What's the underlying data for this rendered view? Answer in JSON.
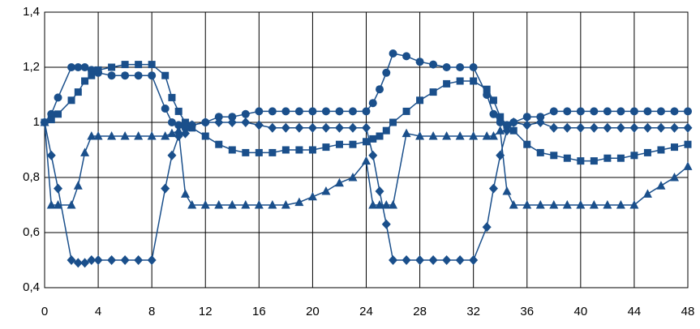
{
  "chart_data": {
    "type": "line",
    "x": [
      0,
      0.5,
      1,
      2,
      2.5,
      3,
      3.5,
      4,
      5,
      6,
      7,
      8,
      9,
      9.5,
      10,
      10.5,
      11,
      12,
      13,
      14,
      15,
      16,
      17,
      18,
      19,
      20,
      21,
      22,
      23,
      24,
      24.5,
      25,
      25.5,
      26,
      27,
      28,
      29,
      30,
      31,
      32,
      33,
      33.5,
      34,
      34.5,
      35,
      36,
      37,
      38,
      39,
      40,
      41,
      42,
      43,
      44,
      45,
      46,
      47,
      48
    ],
    "series": [
      {
        "color": "#1a4f8b",
        "marker": "circle",
        "values": [
          1.0,
          1.03,
          1.09,
          1.2,
          1.2,
          1.2,
          1.19,
          1.18,
          1.17,
          1.17,
          1.17,
          1.17,
          1.05,
          1.0,
          0.99,
          0.98,
          0.99,
          1.0,
          1.02,
          1.02,
          1.03,
          1.04,
          1.04,
          1.04,
          1.04,
          1.04,
          1.04,
          1.04,
          1.04,
          1.04,
          1.07,
          1.12,
          1.18,
          1.25,
          1.24,
          1.22,
          1.21,
          1.2,
          1.2,
          1.2,
          1.1,
          1.03,
          1.0,
          0.99,
          1.0,
          1.02,
          1.02,
          1.04,
          1.04,
          1.04,
          1.04,
          1.04,
          1.04,
          1.04,
          1.04,
          1.04,
          1.04,
          1.04
        ]
      },
      {
        "color": "#1a4f8b",
        "marker": "square",
        "values": [
          1.0,
          1.01,
          1.03,
          1.08,
          1.11,
          1.15,
          1.17,
          1.19,
          1.2,
          1.21,
          1.21,
          1.21,
          1.17,
          1.09,
          1.04,
          1.0,
          0.98,
          0.95,
          0.92,
          0.9,
          0.89,
          0.89,
          0.89,
          0.9,
          0.9,
          0.9,
          0.91,
          0.92,
          0.92,
          0.93,
          0.94,
          0.95,
          0.97,
          1.0,
          1.04,
          1.08,
          1.11,
          1.14,
          1.15,
          1.15,
          1.12,
          1.08,
          1.02,
          0.99,
          0.97,
          0.92,
          0.89,
          0.88,
          0.87,
          0.86,
          0.86,
          0.87,
          0.87,
          0.88,
          0.89,
          0.9,
          0.91,
          0.92
        ]
      },
      {
        "color": "#1a4f8b",
        "marker": "triangle",
        "values": [
          1.0,
          0.7,
          0.7,
          0.7,
          0.77,
          0.89,
          0.95,
          0.95,
          0.95,
          0.95,
          0.95,
          0.95,
          0.95,
          0.96,
          0.97,
          0.74,
          0.7,
          0.7,
          0.7,
          0.7,
          0.7,
          0.7,
          0.7,
          0.7,
          0.71,
          0.73,
          0.75,
          0.78,
          0.8,
          0.86,
          0.7,
          0.7,
          0.7,
          0.7,
          0.96,
          0.95,
          0.95,
          0.95,
          0.95,
          0.95,
          0.95,
          0.95,
          0.97,
          0.75,
          0.7,
          0.7,
          0.7,
          0.7,
          0.7,
          0.7,
          0.7,
          0.7,
          0.7,
          0.7,
          0.74,
          0.77,
          0.8,
          0.84
        ]
      },
      {
        "color": "#1a4f8b",
        "marker": "diamond",
        "values": [
          1.0,
          0.88,
          0.76,
          0.5,
          0.49,
          0.49,
          0.5,
          0.5,
          0.5,
          0.5,
          0.5,
          0.5,
          0.76,
          0.88,
          0.95,
          0.96,
          0.99,
          1.0,
          1.0,
          1.0,
          1.0,
          0.99,
          0.98,
          0.98,
          0.98,
          0.98,
          0.98,
          0.98,
          0.98,
          0.98,
          0.88,
          0.75,
          0.63,
          0.5,
          0.5,
          0.5,
          0.5,
          0.5,
          0.5,
          0.5,
          0.62,
          0.76,
          0.88,
          0.97,
          1.0,
          0.99,
          1.0,
          0.98,
          0.98,
          0.98,
          0.98,
          0.98,
          0.98,
          0.98,
          0.98,
          0.98,
          0.98,
          0.98
        ]
      }
    ],
    "xlim": [
      0,
      48
    ],
    "xticks": [
      0,
      4,
      8,
      12,
      16,
      20,
      24,
      28,
      32,
      36,
      40,
      44,
      48
    ],
    "ylim": [
      0.4,
      1.4
    ],
    "yticks": [
      {
        "value": 0.4,
        "label": "0,4"
      },
      {
        "value": 0.6,
        "label": "0,6"
      },
      {
        "value": 0.8,
        "label": "0,8"
      },
      1,
      {
        "value": 1.2,
        "label": "1,2"
      },
      {
        "value": 1.4,
        "label": "1,4"
      }
    ],
    "grid": true
  }
}
